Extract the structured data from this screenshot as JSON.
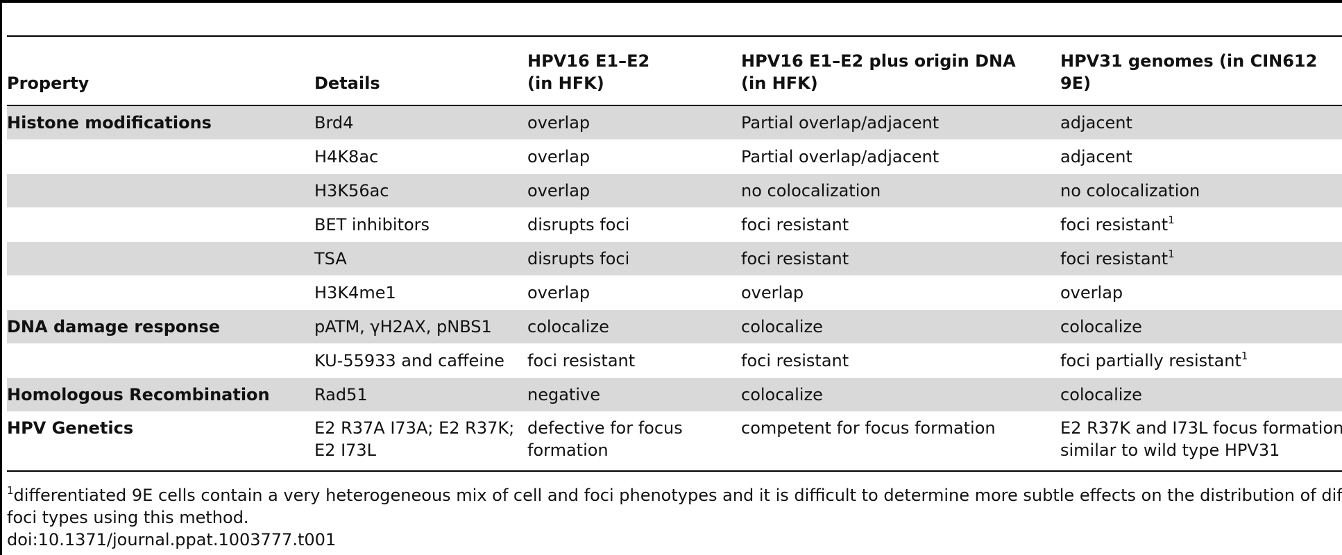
{
  "table": {
    "headers": {
      "property": "Property",
      "details": "Details",
      "col3_line1": "HPV16 E1–E2",
      "col3_line2": "(in HFK)",
      "col4_line1": "HPV16 E1–E2 plus origin DNA",
      "col4_line2": "(in HFK)",
      "col5_line1": "HPV31 genomes (in CIN612",
      "col5_line2": "9E)"
    },
    "rows": [
      {
        "property": "Histone modifications",
        "details": "Brd4",
        "c3": "overlap",
        "c4": "Partial overlap/adjacent",
        "c5": "adjacent",
        "shaded": true
      },
      {
        "property": "",
        "details": "H4K8ac",
        "c3": "overlap",
        "c4": "Partial overlap/adjacent",
        "c5": "adjacent",
        "shaded": false
      },
      {
        "property": "",
        "details": "H3K56ac",
        "c3": "overlap",
        "c4": "no colocalization",
        "c5": "no colocalization",
        "shaded": true
      },
      {
        "property": "",
        "details": "BET inhibitors",
        "c3": "disrupts foci",
        "c4": "foci resistant",
        "c5": "foci resistant",
        "c5_sup": "1",
        "shaded": false
      },
      {
        "property": "",
        "details": "TSA",
        "c3": "disrupts foci",
        "c4": "foci resistant",
        "c5": "foci resistant",
        "c5_sup": "1",
        "shaded": true
      },
      {
        "property": "",
        "details": "H3K4me1",
        "c3": "overlap",
        "c4": "overlap",
        "c5": "overlap",
        "shaded": false
      },
      {
        "property": "DNA damage response",
        "details": "pATM, γH2AX, pNBS1",
        "c3": "colocalize",
        "c4": "colocalize",
        "c5": "colocalize",
        "shaded": true
      },
      {
        "property": "",
        "details": "KU-55933 and caffeine",
        "c3": "foci resistant",
        "c4": "foci resistant",
        "c5": "foci partially resistant",
        "c5_sup": "1",
        "shaded": false
      },
      {
        "property": "Homologous Recombination",
        "details": "Rad51",
        "c3": "negative",
        "c4": "colocalize",
        "c5": "colocalize",
        "shaded": true
      },
      {
        "property": "HPV Genetics",
        "details_line1": "E2 R37A I73A; E2 R37K;",
        "details_line2": "E2 I73L",
        "c3_line1": "defective for focus",
        "c3_line2": "formation",
        "c4": "competent for focus formation",
        "c5_line1": "E2 R37K and I73L focus formation",
        "c5_line2": "similar to wild type HPV31",
        "shaded": false
      }
    ]
  },
  "footnote": {
    "marker": "1",
    "line1": "differentiated 9E cells contain a very heterogeneous mix of cell and foci phenotypes and it is difficult to determine more subtle effects on the distribution of different",
    "line2": "foci types using this method.",
    "doi": "doi:10.1371/journal.ppat.1003777.t001"
  }
}
